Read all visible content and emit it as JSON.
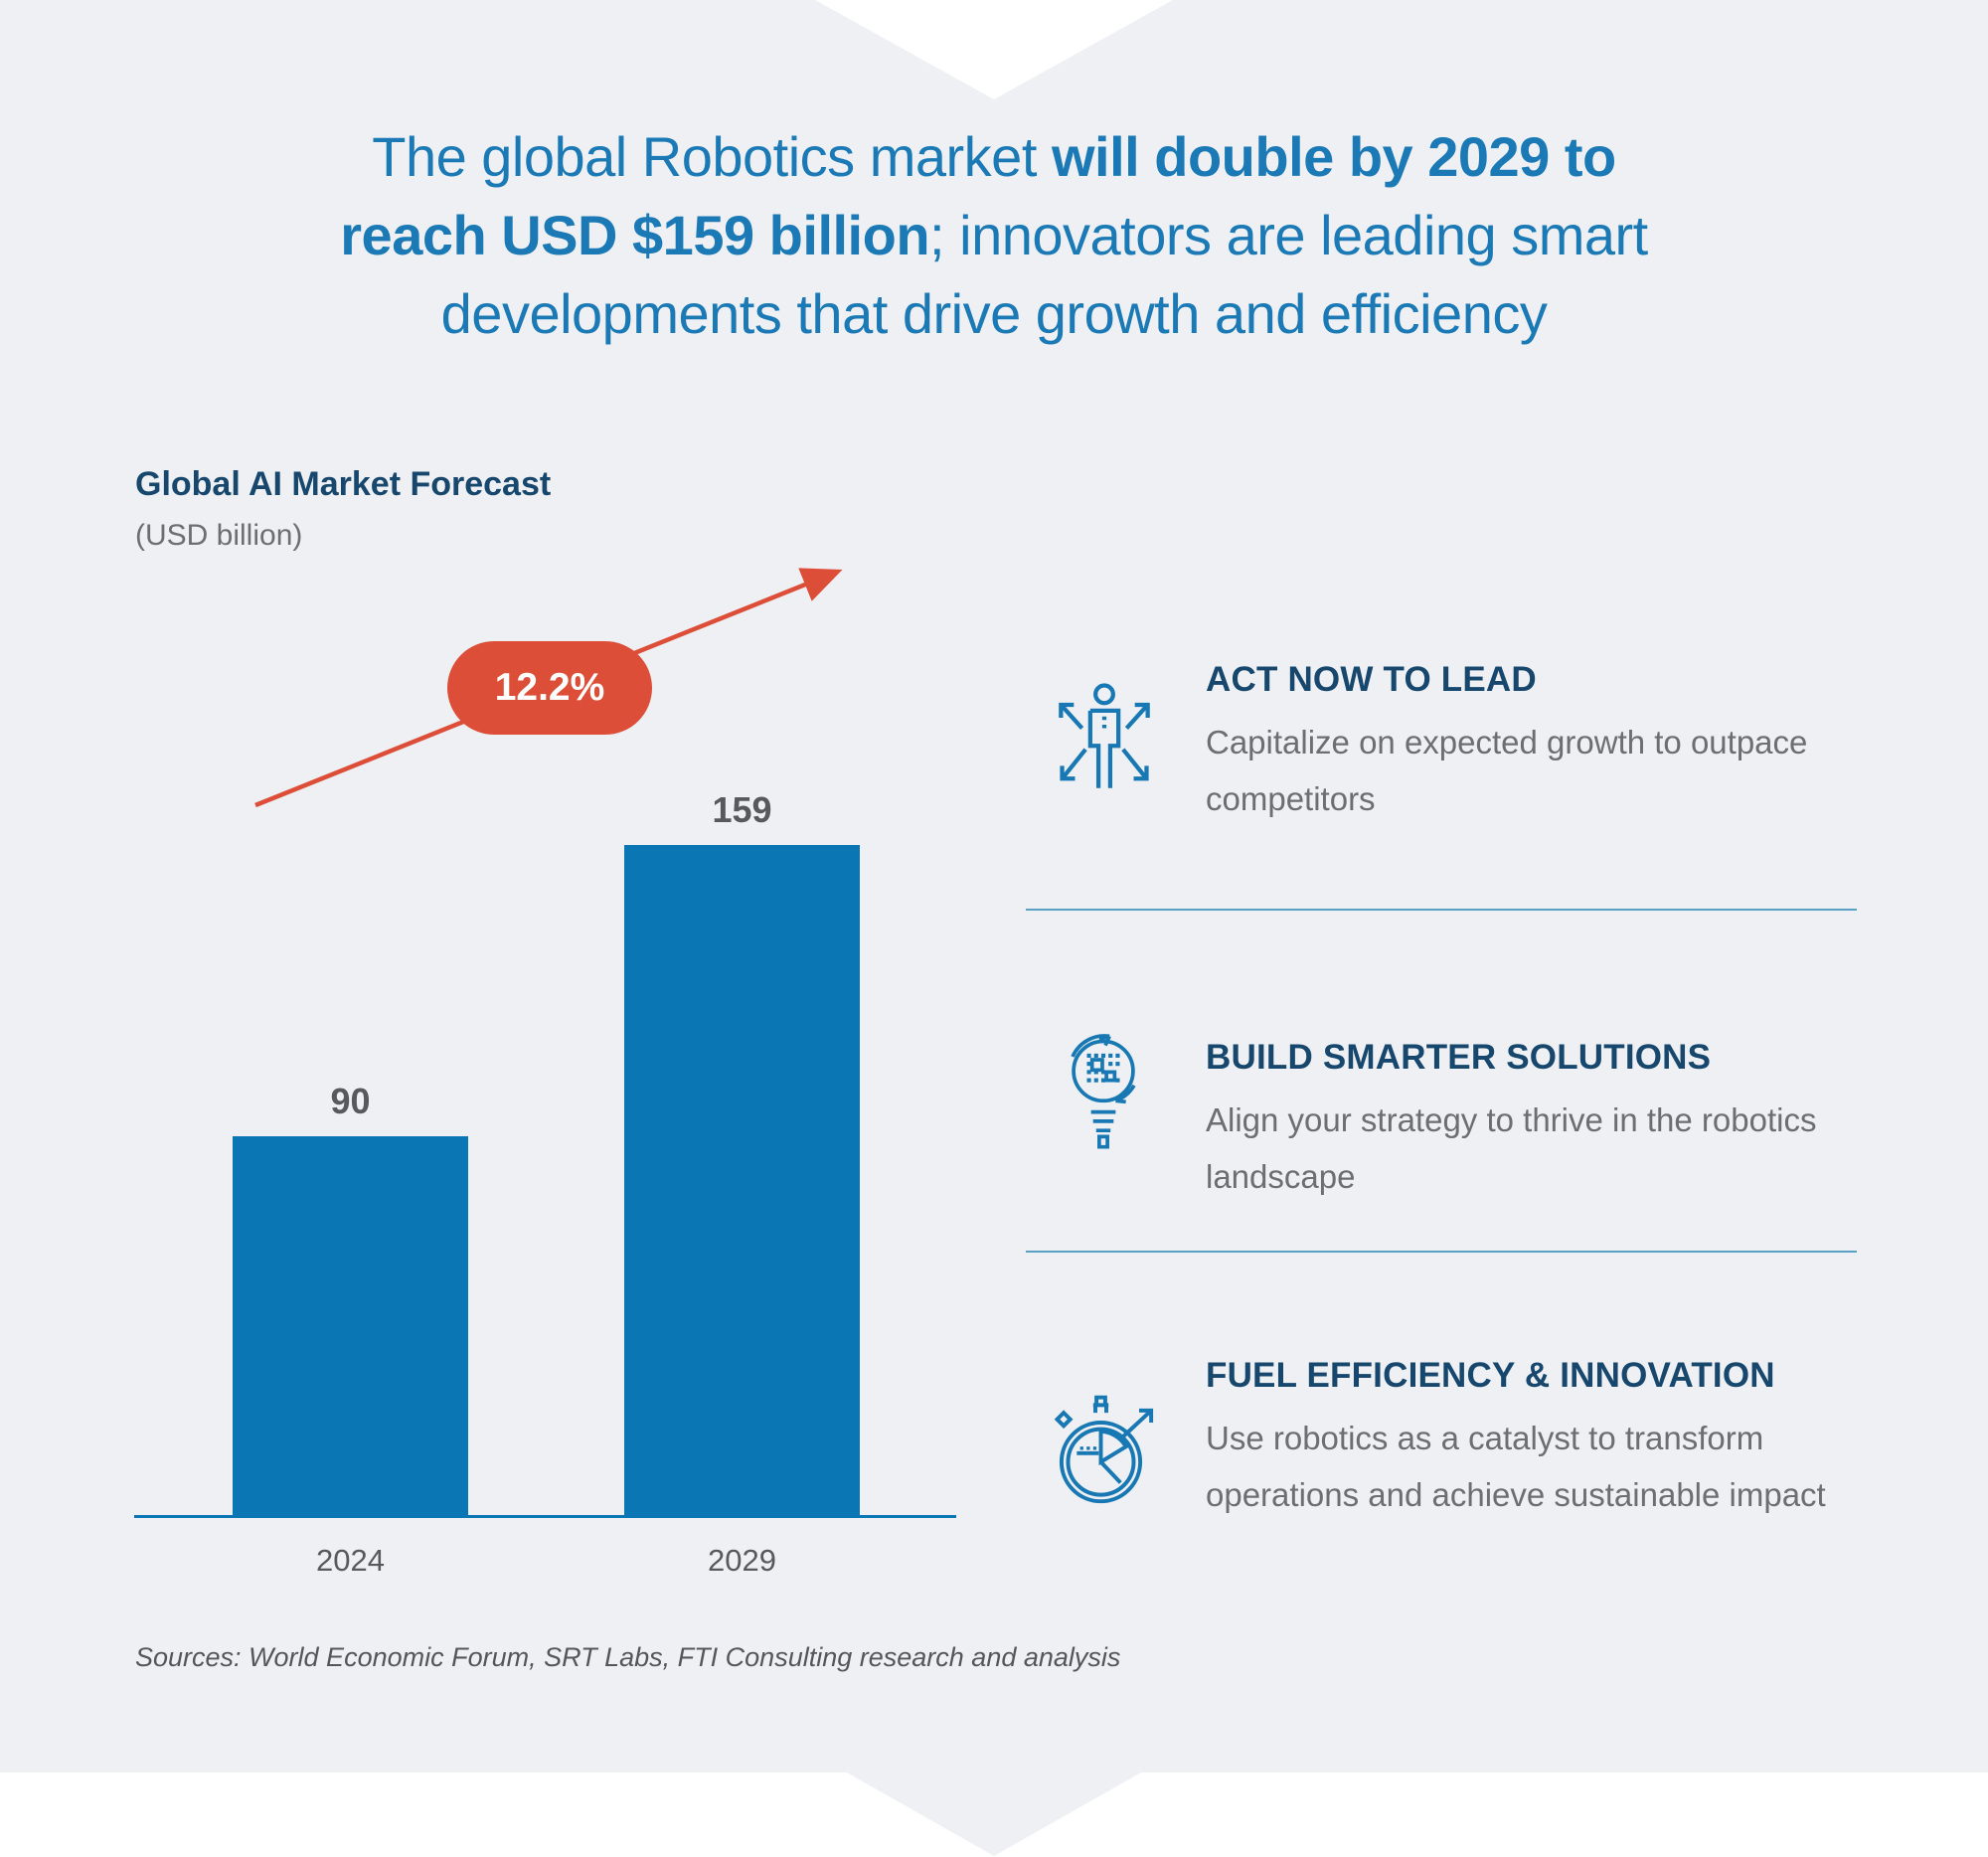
{
  "colors": {
    "background": "#eef0f3",
    "accent_blue": "#0b76b4",
    "title_blue": "#1b7ab5",
    "navy": "#17476d",
    "red": "#dd4e38",
    "body_gray": "#6d6e70",
    "label_gray": "#58595b",
    "divider_blue": "#5ba1c6"
  },
  "title": {
    "line1_regular": "The global Robotics market ",
    "line1_bold": "will double by 2029 to",
    "line2_bold": "reach USD $159 billion",
    "line2_regular": "; innovators are leading smart",
    "line3_regular": "developments that drive growth and efficiency"
  },
  "chart_data": {
    "type": "bar",
    "title": "Global AI Market Forecast",
    "subtitle": "(USD billion)",
    "categories": [
      "2024",
      "2029"
    ],
    "values": [
      90,
      159
    ],
    "value_labels": [
      "90",
      "159"
    ],
    "growth_label": "12.2%",
    "ylim": [
      0,
      170
    ],
    "bar_color": "#0b76b4",
    "grid": false,
    "legend": false,
    "annotations": [
      "Upward red arrow with 12.2% growth badge between 2024 and 2029 bars"
    ]
  },
  "callouts": [
    {
      "icon": "person-arrows",
      "heading": "ACT NOW TO LEAD",
      "body": "Capitalize on expected growth to outpace competitors"
    },
    {
      "icon": "lightbulb-circuit",
      "heading": "BUILD SMARTER SOLUTIONS",
      "body": "Align your strategy to thrive in the robotics landscape"
    },
    {
      "icon": "stopwatch-pie-chart",
      "heading": "FUEL EFFICIENCY & INNOVATION",
      "body": "Use robotics as a catalyst to transform operations and achieve sustainable impact"
    }
  ],
  "sources": "Sources: World Economic Forum, SRT Labs, FTI Consulting research and analysis"
}
